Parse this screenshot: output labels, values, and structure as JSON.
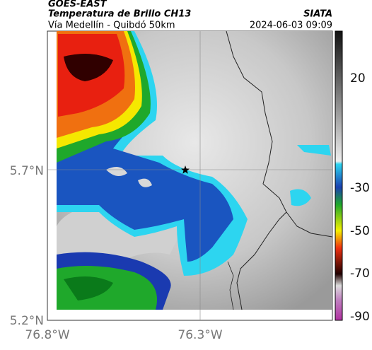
{
  "header": {
    "source": "GOES-EAST",
    "title": "Temperatura de Brillo CH13",
    "brand": "SIATA",
    "route": "Vía Medellín - Quibdó 50km",
    "timestamp": "2024-06-03 09:09"
  },
  "axes": {
    "lat_labels": [
      "5.7°N",
      "5.2°N"
    ],
    "lon_labels": [
      "76.8°W",
      "76.3°W"
    ]
  },
  "colorbar": {
    "labels": [
      "20",
      "-30",
      "-50",
      "-70",
      "-90"
    ]
  }
}
